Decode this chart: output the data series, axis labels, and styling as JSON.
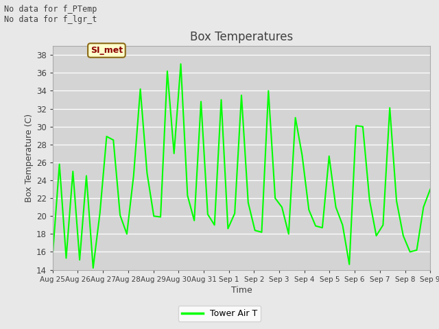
{
  "title": "Box Temperatures",
  "xlabel": "Time",
  "ylabel": "Box Temperature (C)",
  "ylim": [
    14,
    39
  ],
  "yticks": [
    14,
    16,
    18,
    20,
    22,
    24,
    26,
    28,
    30,
    32,
    34,
    36,
    38
  ],
  "line_color": "#00ff00",
  "line_width": 1.5,
  "bg_color": "#e8e8e8",
  "plot_bg_color": "#d4d4d4",
  "text_color": "#404040",
  "annotation_text1": "No data for f_PTemp",
  "annotation_text2": "No data for f_lgr_t",
  "legend_label": "Tower Air T",
  "legend_box_text": "SI_met",
  "x_tick_labels": [
    "Aug 25",
    "Aug 26",
    "Aug 27",
    "Aug 28",
    "Aug 29",
    "Aug 30",
    "Aug 31",
    "Sep 1",
    "Sep 2",
    "Sep 3",
    "Sep 4",
    "Sep 5",
    "Sep 6",
    "Sep 7",
    "Sep 8",
    "Sep 9"
  ],
  "y_data": [
    15.7,
    25.8,
    15.3,
    25.0,
    15.1,
    24.5,
    14.2,
    20.3,
    28.9,
    28.5,
    20.1,
    18.0,
    24.5,
    34.2,
    24.8,
    20.0,
    19.9,
    36.2,
    27.0,
    37.0,
    22.3,
    19.5,
    32.8,
    20.2,
    19.0,
    33.0,
    18.6,
    20.3,
    33.5,
    21.5,
    18.4,
    18.2,
    34.0,
    22.0,
    21.0,
    18.0,
    31.0,
    26.8,
    20.7,
    18.9,
    18.7,
    26.7,
    21.0,
    19.0,
    14.6,
    30.1,
    30.0,
    21.8,
    17.8,
    19.0,
    32.1,
    21.7,
    17.8,
    16.0,
    16.2,
    21.0,
    23.0
  ]
}
